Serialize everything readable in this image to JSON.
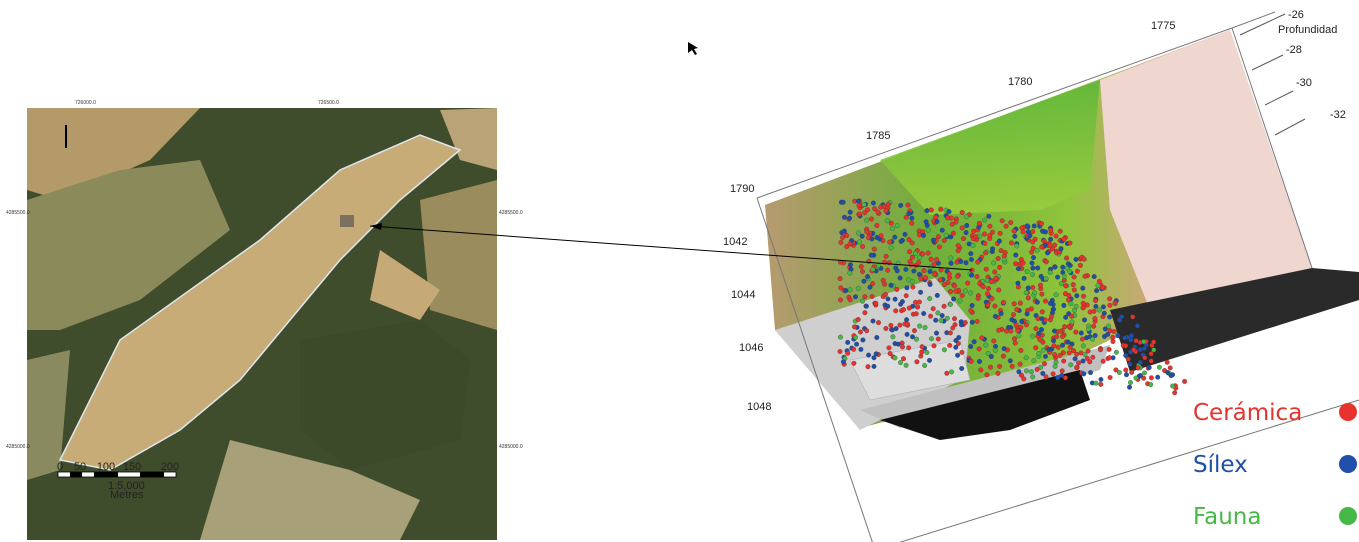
{
  "map": {
    "top_coordinates": [
      "726000.0",
      "726500.0"
    ],
    "left_coordinates": [
      "4285500.0",
      "4285000.0"
    ],
    "right_coordinates": [
      "4285500.0",
      "4285000.0"
    ],
    "scale_bar": {
      "ticks": [
        "0",
        "50",
        "100",
        "150",
        "200"
      ],
      "ratio": "1:5,000",
      "unit": "Metres"
    }
  },
  "model": {
    "x_axis_labels": [
      "1775",
      "1780",
      "1785",
      "1790"
    ],
    "y_axis_labels": [
      "1042",
      "1044",
      "1046",
      "1048"
    ],
    "depth_title": "Profundidad",
    "depth_labels": [
      "-26",
      "-28",
      "-30",
      "-32"
    ],
    "legend": [
      {
        "label": "Cerámica",
        "color": "#e8322e"
      },
      {
        "label": "Sílex",
        "color": "#1f4fa8"
      },
      {
        "label": "Fauna",
        "color": "#46b846"
      }
    ]
  }
}
